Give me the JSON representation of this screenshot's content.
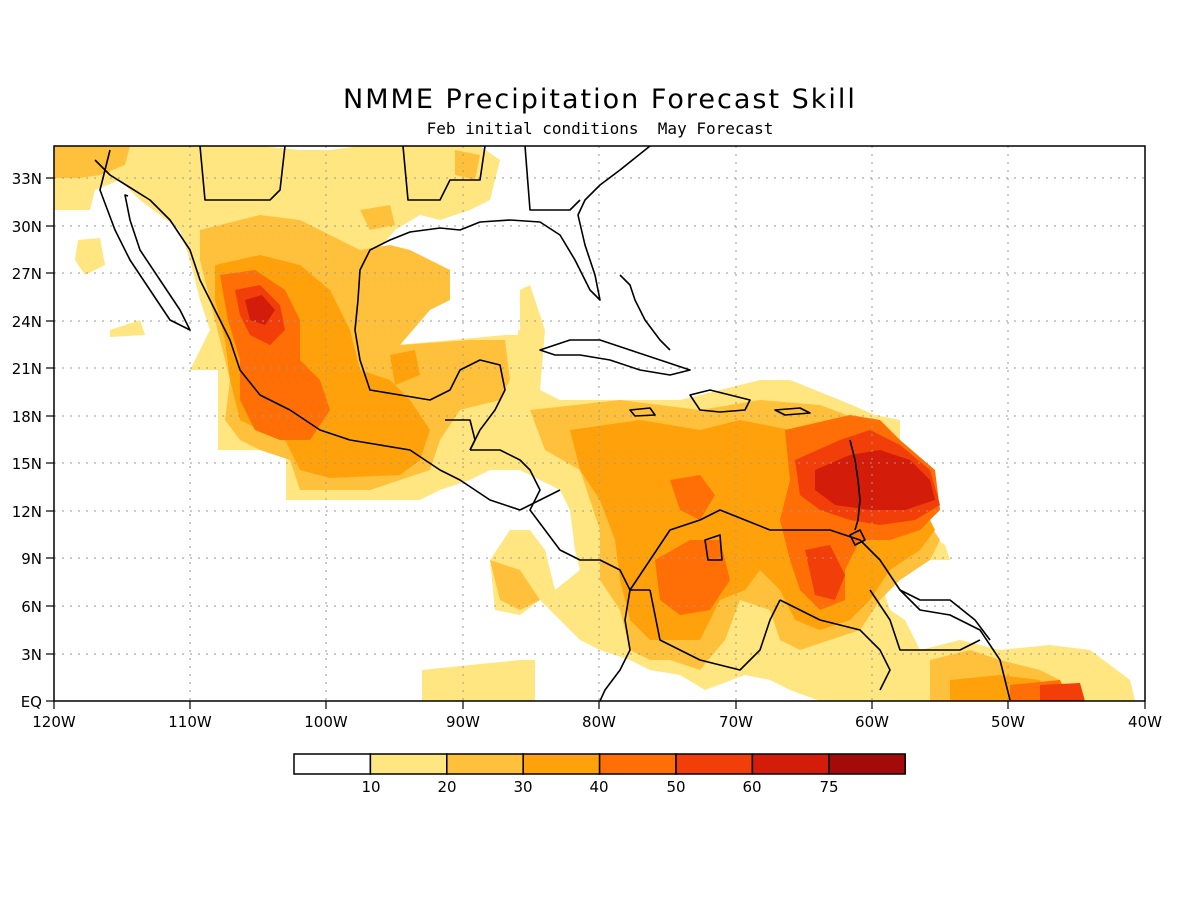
{
  "title": "NMME Precipitation Forecast Skill",
  "subtitle": "Feb initial conditions  May Forecast",
  "colors": {
    "background": "#ffffff",
    "level_10_20": "#ffe680",
    "level_20_30": "#ffc13c",
    "level_30_40": "#ffa10a",
    "level_40_50": "#ff6f05",
    "level_50_60": "#f23f0a",
    "level_60_75": "#d41c0a",
    "level_75_plus": "#a30a0a",
    "coastline": "#000000"
  },
  "map": {
    "lon_range": [
      -120,
      -40
    ],
    "lat_range": [
      0,
      35
    ],
    "lon_ticks": [
      "120W",
      "110W",
      "100W",
      "90W",
      "80W",
      "70W",
      "60W",
      "50W",
      "40W"
    ],
    "lat_ticks": [
      "EQ",
      "3N",
      "6N",
      "9N",
      "12N",
      "15N",
      "18N",
      "21N",
      "24N",
      "27N",
      "30N",
      "33N"
    ]
  },
  "colorbar": {
    "labels": [
      "10",
      "20",
      "30",
      "40",
      "50",
      "60",
      "75"
    ],
    "colors": [
      "#ffffff",
      "#ffe680",
      "#ffc13c",
      "#ffa10a",
      "#ff6f05",
      "#f23f0a",
      "#d41c0a",
      "#a30a0a"
    ]
  }
}
